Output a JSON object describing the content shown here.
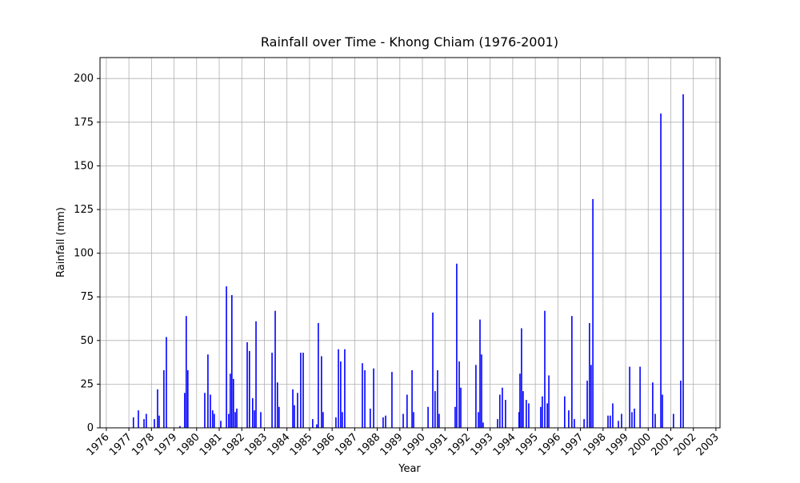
{
  "chart_data": {
    "type": "bar",
    "title": "Rainfall over Time - Khong Chiam (1976-2001)",
    "x_label": "Year",
    "y_label": "Rainfall (mm)",
    "color": "#0000ff",
    "grid": true,
    "xlim": [
      1975.72,
      2003.18
    ],
    "ylim": [
      0,
      212
    ],
    "xticks": [
      1976,
      1977,
      1978,
      1979,
      1980,
      1981,
      1982,
      1983,
      1984,
      1985,
      1986,
      1987,
      1988,
      1989,
      1990,
      1991,
      1992,
      1993,
      1994,
      1995,
      1996,
      1997,
      1998,
      1999,
      2000,
      2001,
      2002,
      2003
    ],
    "yticks": [
      0,
      25,
      50,
      75,
      100,
      125,
      150,
      175,
      200
    ],
    "x": [
      1977.2,
      1977.42,
      1977.67,
      1977.77,
      1978.13,
      1978.27,
      1978.34,
      1978.55,
      1978.66,
      1979.26,
      1979.47,
      1979.54,
      1979.61,
      1980.36,
      1980.5,
      1980.61,
      1980.71,
      1980.78,
      1981.07,
      1981.32,
      1981.42,
      1981.49,
      1981.56,
      1981.63,
      1981.71,
      1981.78,
      1982.24,
      1982.34,
      1982.48,
      1982.56,
      1982.63,
      1982.84,
      1983.34,
      1983.48,
      1983.58,
      1983.65,
      1984.26,
      1984.33,
      1984.47,
      1984.61,
      1984.72,
      1985.14,
      1985.32,
      1985.39,
      1985.53,
      1985.6,
      1986.17,
      1986.28,
      1986.38,
      1986.45,
      1986.56,
      1987.34,
      1987.45,
      1987.69,
      1987.84,
      1988.26,
      1988.37,
      1988.65,
      1989.15,
      1989.32,
      1989.54,
      1989.61,
      1990.25,
      1990.46,
      1990.56,
      1990.67,
      1990.74,
      1991.45,
      1991.52,
      1991.63,
      1991.7,
      1992.37,
      1992.48,
      1992.55,
      1992.62,
      1992.69,
      1993.33,
      1993.43,
      1993.54,
      1993.68,
      1994.28,
      1994.32,
      1994.39,
      1994.46,
      1994.6,
      1994.71,
      1995.24,
      1995.31,
      1995.42,
      1995.53,
      1995.6,
      1996.3,
      1996.48,
      1996.62,
      1996.73,
      1997.16,
      1997.3,
      1997.4,
      1997.47,
      1997.55,
      1998.22,
      1998.32,
      1998.43,
      1998.68,
      1998.82,
      1999.18,
      1999.28,
      1999.39,
      1999.64,
      2000.2,
      2000.31,
      2000.56,
      2000.63,
      2001.12,
      2001.44,
      2001.55
    ],
    "values": [
      6,
      10,
      5,
      8,
      5,
      22,
      7,
      33,
      52,
      1,
      20,
      64,
      33,
      20,
      42,
      19,
      10,
      8,
      4,
      81,
      8,
      31,
      76,
      28,
      9,
      11,
      49,
      44,
      17,
      10,
      61,
      9,
      43,
      67,
      26,
      12,
      22,
      13,
      20,
      43,
      43,
      5,
      2,
      60,
      41,
      9,
      6,
      45,
      38,
      9,
      45,
      37,
      33,
      11,
      34,
      6,
      7,
      32,
      8,
      19,
      33,
      9,
      12,
      66,
      21,
      33,
      8,
      12,
      94,
      38,
      23,
      36,
      9,
      62,
      42,
      3,
      5,
      19,
      23,
      16,
      9,
      31,
      57,
      21,
      16,
      14,
      12,
      18,
      67,
      14,
      30,
      18,
      10,
      64,
      5,
      5,
      27,
      60,
      36,
      131,
      7,
      7,
      14,
      4,
      8,
      35,
      9,
      11,
      35,
      26,
      8,
      180,
      19,
      8,
      27,
      191
    ]
  }
}
